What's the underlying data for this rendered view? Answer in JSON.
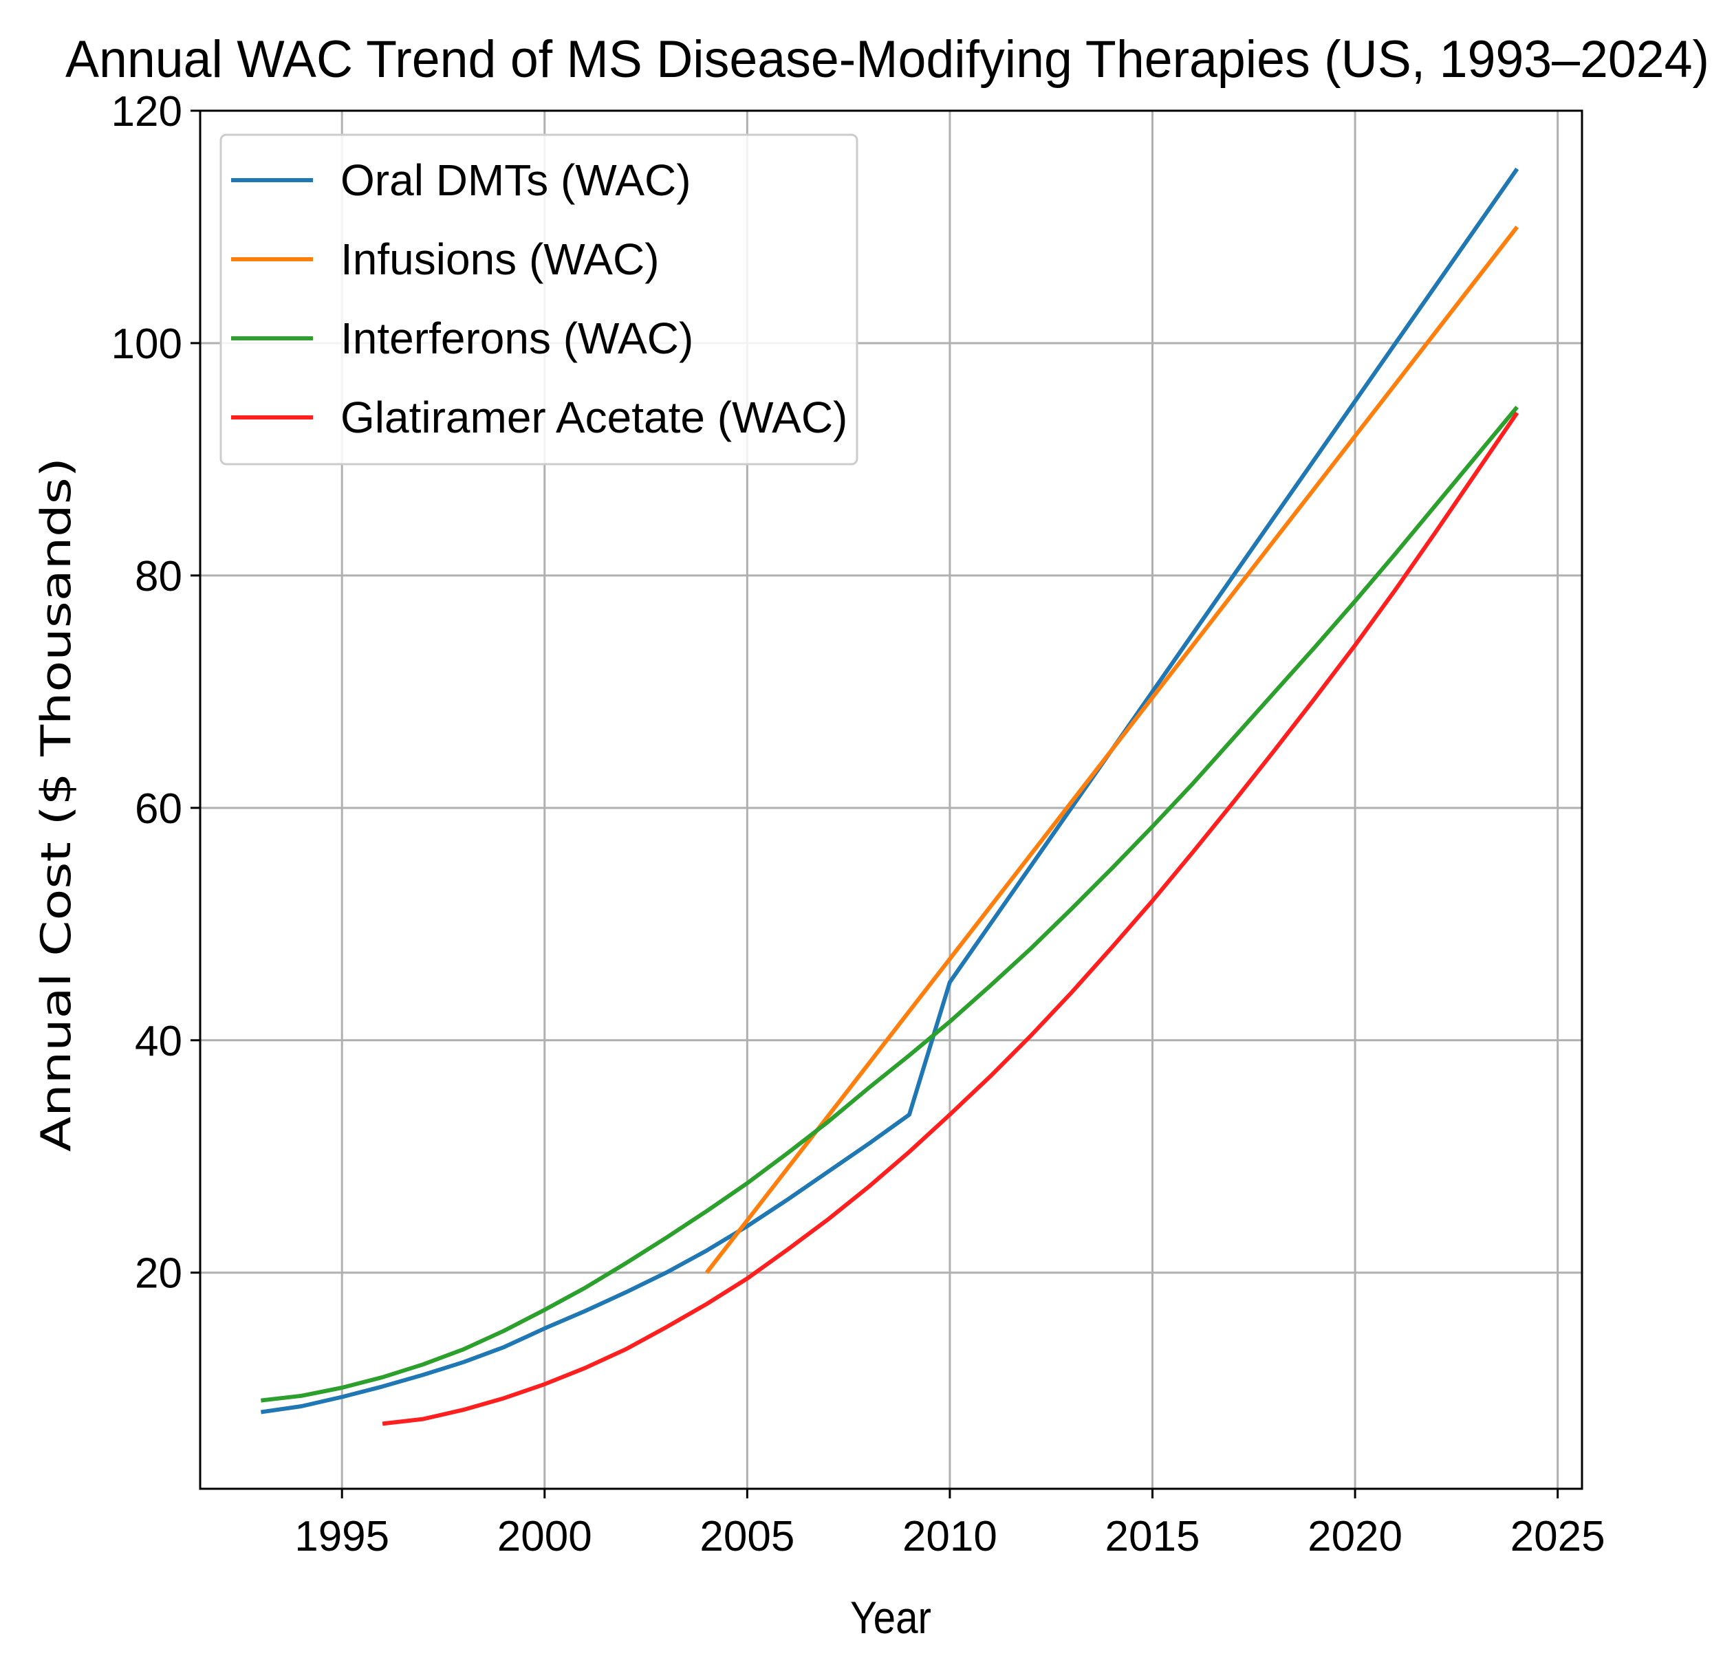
{
  "chart_data": {
    "type": "line",
    "title": "Annual WAC Trend of MS Disease-Modifying Therapies (US, 1993–2024)",
    "xlabel": "Year",
    "ylabel": "Annual Cost ($ Thousands)",
    "xlim": [
      1991.5,
      2025.6
    ],
    "ylim": [
      1.4,
      120
    ],
    "xticks": [
      1995,
      2000,
      2005,
      2010,
      2015,
      2020,
      2025
    ],
    "yticks": [
      20,
      40,
      60,
      80,
      100,
      120
    ],
    "grid": true,
    "legend_position": "top-left",
    "series": [
      {
        "name": "Oral DMTs (WAC)",
        "color": "#1f77b4",
        "x": [
          1993,
          1994,
          1995,
          1996,
          1997,
          1998,
          1999,
          2000,
          2001,
          2002,
          2003,
          2004,
          2005,
          2006,
          2007,
          2008,
          2009,
          2010,
          2011,
          2012,
          2013,
          2014,
          2015,
          2016,
          2017,
          2018,
          2019,
          2020,
          2021,
          2022,
          2023,
          2024
        ],
        "y": [
          8.0,
          8.5,
          9.3,
          10.2,
          11.2,
          12.3,
          13.6,
          15.2,
          16.7,
          18.3,
          20.0,
          21.9,
          24.0,
          26.3,
          28.7,
          31.1,
          33.6,
          45,
          50,
          55,
          60,
          65,
          70,
          75,
          80,
          85,
          90,
          95,
          100,
          105,
          110,
          115
        ]
      },
      {
        "name": "Infusions (WAC)",
        "color": "#ff7f0e",
        "x": [
          2004,
          2005,
          2006,
          2007,
          2008,
          2009,
          2010,
          2011,
          2012,
          2013,
          2014,
          2015,
          2016,
          2017,
          2018,
          2019,
          2020,
          2021,
          2022,
          2023,
          2024
        ],
        "y": [
          20,
          24.5,
          29,
          33.5,
          38,
          42.5,
          47,
          51.5,
          56,
          60.5,
          65,
          69.5,
          74,
          78.5,
          83,
          87.5,
          92,
          96.5,
          101,
          105.5,
          110
        ]
      },
      {
        "name": "Interferons (WAC)",
        "color": "#2ca02c",
        "x": [
          1993,
          1994,
          1995,
          1996,
          1997,
          1998,
          1999,
          2000,
          2001,
          2002,
          2003,
          2004,
          2005,
          2006,
          2007,
          2008,
          2009,
          2010,
          2011,
          2012,
          2013,
          2014,
          2015,
          2016,
          2017,
          2018,
          2019,
          2020,
          2021,
          2022,
          2023,
          2024
        ],
        "y": [
          9.0,
          9.4,
          10.1,
          11.0,
          12.1,
          13.4,
          15.0,
          16.8,
          18.7,
          20.8,
          23.0,
          25.3,
          27.7,
          30.3,
          33.0,
          35.9,
          38.7,
          41.6,
          44.7,
          47.9,
          51.3,
          54.8,
          58.4,
          62.1,
          66.0,
          69.9,
          73.8,
          77.8,
          81.9,
          86.1,
          90.3,
          94.5
        ]
      },
      {
        "name": "Glatiramer Acetate (WAC)",
        "color": "#ff1f1f",
        "x": [
          1996,
          1997,
          1998,
          1999,
          2000,
          2001,
          2002,
          2003,
          2004,
          2005,
          2006,
          2007,
          2008,
          2009,
          2010,
          2011,
          2012,
          2013,
          2014,
          2015,
          2016,
          2017,
          2018,
          2019,
          2020,
          2021,
          2022,
          2023,
          2024
        ],
        "y": [
          7.0,
          7.4,
          8.2,
          9.2,
          10.4,
          11.8,
          13.4,
          15.3,
          17.3,
          19.5,
          22.0,
          24.6,
          27.4,
          30.4,
          33.6,
          36.9,
          40.4,
          44.1,
          48.0,
          52.0,
          56.2,
          60.5,
          64.9,
          69.4,
          74.0,
          78.8,
          83.8,
          88.9,
          94.0
        ]
      }
    ]
  }
}
